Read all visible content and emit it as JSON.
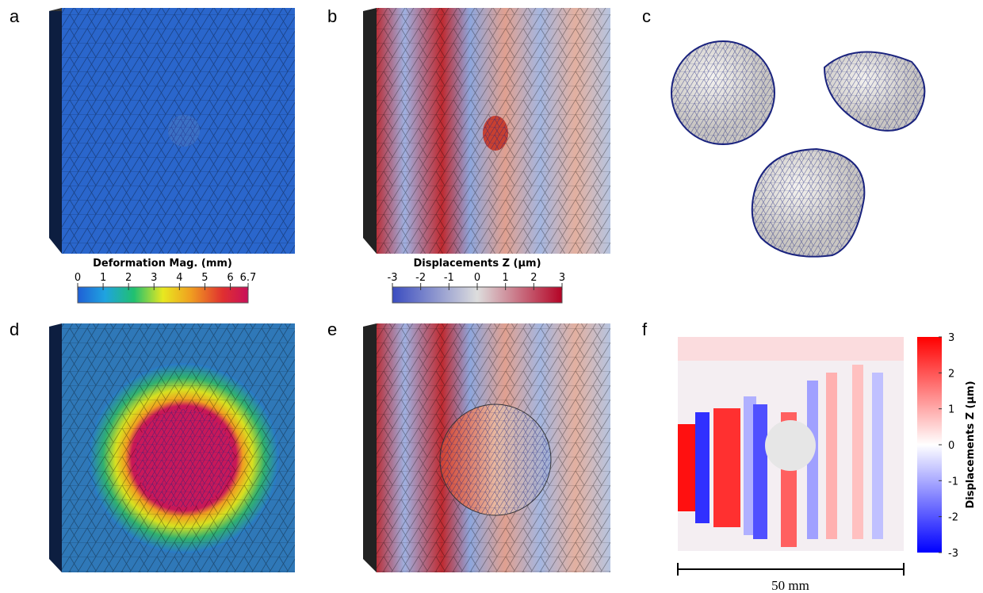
{
  "panels": [
    {
      "label": "a"
    },
    {
      "label": "b"
    },
    {
      "label": "c"
    },
    {
      "label": "d"
    },
    {
      "label": "e"
    },
    {
      "label": "f"
    }
  ],
  "colorbars": [
    {
      "title": "Deformation Mag. (mm)",
      "ticks": [
        0,
        1,
        2,
        3,
        4,
        5,
        6,
        6.7
      ]
    },
    {
      "title": "Displacements Z (μm)",
      "ticks": [
        -3,
        -2,
        -1,
        0,
        1,
        2,
        3
      ]
    },
    {
      "title": "Displacements Z (μm)",
      "ticks": [
        3,
        2,
        1,
        0,
        -1,
        -2,
        -3
      ]
    }
  ],
  "scale_bar": {
    "label": "50 mm"
  }
}
